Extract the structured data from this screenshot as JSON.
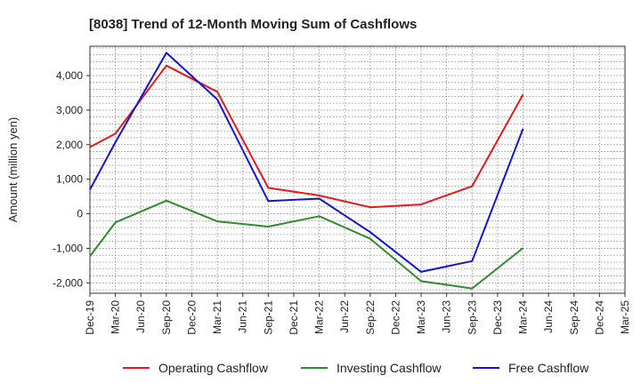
{
  "chart_data": {
    "type": "line",
    "title": "[8038]  Trend of 12-Month Moving Sum of Cashflows",
    "ylabel": "Amount (million yen)",
    "xlabel": "",
    "categories": [
      "Dec-19",
      "Mar-20",
      "Jun-20",
      "Sep-20",
      "Dec-20",
      "Mar-21",
      "Jun-21",
      "Sep-21",
      "Dec-21",
      "Mar-22",
      "Jun-22",
      "Sep-22",
      "Dec-22",
      "Mar-23",
      "Jun-23",
      "Sep-23",
      "Dec-23",
      "Mar-24",
      "Jun-24",
      "Sep-24",
      "Dec-24",
      "Mar-25"
    ],
    "y_ticks": [
      4000,
      3000,
      2000,
      1000,
      0,
      -1000,
      -2000
    ],
    "y_tick_labels": [
      "4,000",
      "3,000",
      "2,000",
      "1,000",
      "0",
      "-1,000",
      "-2,000"
    ],
    "ylim": [
      -2300,
      4850
    ],
    "grid": true,
    "legend_position": "bottom",
    "series": [
      {
        "name": "Operating Cashflow",
        "color": "#e41a1c",
        "x": [
          "Dec-19",
          "Mar-20",
          "Sep-20",
          "Mar-21",
          "Sep-21",
          "Mar-22",
          "Sep-22",
          "Mar-23",
          "Sep-23",
          "Mar-24"
        ],
        "values": [
          1930,
          2320,
          4290,
          3530,
          750,
          530,
          190,
          270,
          800,
          3450
        ]
      },
      {
        "name": "Investing Cashflow",
        "color": "#2e8b2e",
        "x": [
          "Dec-19",
          "Mar-20",
          "Sep-20",
          "Mar-21",
          "Sep-21",
          "Mar-22",
          "Sep-22",
          "Mar-23",
          "Sep-23",
          "Mar-24"
        ],
        "values": [
          -1230,
          -250,
          380,
          -220,
          -370,
          -70,
          -720,
          -1950,
          -2160,
          -990
        ]
      },
      {
        "name": "Free Cashflow",
        "color": "#1515d4",
        "x": [
          "Dec-19",
          "Mar-20",
          "Sep-20",
          "Mar-21",
          "Sep-21",
          "Mar-22",
          "Sep-22",
          "Mar-23",
          "Sep-23",
          "Mar-24"
        ],
        "values": [
          700,
          2070,
          4660,
          3310,
          370,
          440,
          -530,
          -1680,
          -1370,
          2460
        ]
      }
    ]
  }
}
